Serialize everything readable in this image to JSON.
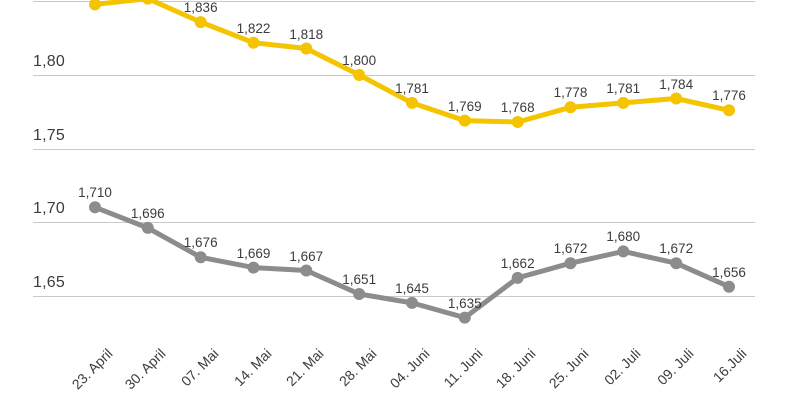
{
  "chart_data": {
    "type": "line",
    "title": "",
    "xlabel": "",
    "ylabel": "",
    "legend": "none",
    "grid": true,
    "y_axis": {
      "ticks": [
        {
          "value": 1.85,
          "label": ""
        },
        {
          "value": 1.8,
          "label": "1,80"
        },
        {
          "value": 1.75,
          "label": "1,75"
        },
        {
          "value": 1.7,
          "label": "1,70"
        },
        {
          "value": 1.65,
          "label": "1,65"
        }
      ],
      "decimal_style": "comma"
    },
    "x_labels": [
      "23. April",
      "30. April",
      "07. Mai",
      "14. Mai",
      "21. Mai",
      "28. Mai",
      "04. Juni",
      "11. Juni",
      "18. Juni",
      "25. Juni",
      "02. Juli",
      "09. Juli",
      "16.Juli"
    ],
    "series": [
      {
        "id": "yellow-series",
        "color": "#f5c400",
        "values": [
          1.848,
          1.852,
          1.836,
          1.822,
          1.818,
          1.8,
          1.781,
          1.769,
          1.768,
          1.778,
          1.781,
          1.784,
          1.776
        ],
        "labels": [
          "",
          "",
          "1,836",
          "1,822",
          "1,818",
          "1,800",
          "1,781",
          "1,769",
          "1,768",
          "1,778",
          "1,781",
          "1,784",
          "1,776"
        ]
      },
      {
        "id": "gray-series",
        "color": "#8c8c8c",
        "values": [
          1.71,
          1.696,
          1.676,
          1.669,
          1.667,
          1.651,
          1.645,
          1.635,
          1.662,
          1.672,
          1.68,
          1.672,
          1.656
        ],
        "labels": [
          "1,710",
          "1,696",
          "1,676",
          "1,669",
          "1,667",
          "1,651",
          "1,645",
          "1,635",
          "1,662",
          "1,672",
          "1,680",
          "1,672",
          "1,656"
        ]
      }
    ],
    "colors": {
      "gridline": "#c9c9c9",
      "tick_text": "#3c3c3c",
      "label_text": "#3c3c3c"
    }
  }
}
